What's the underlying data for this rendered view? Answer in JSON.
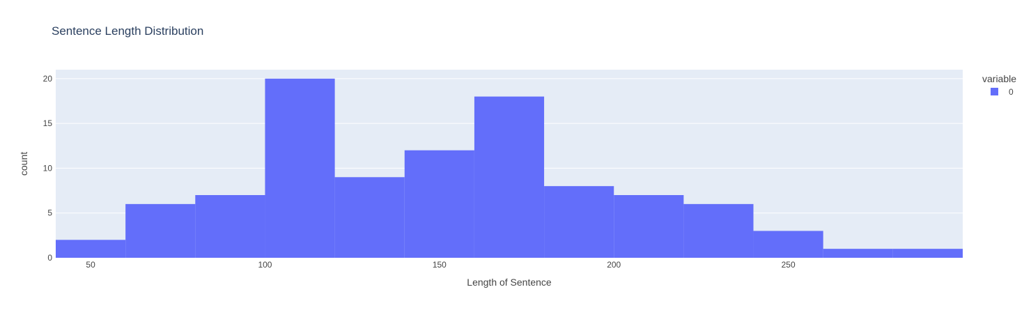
{
  "chart_data": {
    "type": "bar",
    "title": "Sentence Length Distribution",
    "xlabel": "Length of Sentence",
    "ylabel": "count",
    "xlim": [
      40,
      300
    ],
    "ylim": [
      0,
      21
    ],
    "xticks": [
      50,
      100,
      150,
      200,
      250
    ],
    "yticks": [
      0,
      5,
      10,
      15,
      20
    ],
    "grid": true,
    "legend_position": "top-right",
    "legend_title": "variable",
    "series": [
      {
        "name": "0",
        "color": "#636efa",
        "bins": [
          {
            "start": 40,
            "end": 60,
            "count": 2
          },
          {
            "start": 60,
            "end": 80,
            "count": 6
          },
          {
            "start": 80,
            "end": 100,
            "count": 7
          },
          {
            "start": 100,
            "end": 120,
            "count": 20
          },
          {
            "start": 120,
            "end": 140,
            "count": 9
          },
          {
            "start": 140,
            "end": 160,
            "count": 12
          },
          {
            "start": 160,
            "end": 180,
            "count": 18
          },
          {
            "start": 180,
            "end": 200,
            "count": 8
          },
          {
            "start": 200,
            "end": 220,
            "count": 7
          },
          {
            "start": 220,
            "end": 240,
            "count": 6
          },
          {
            "start": 240,
            "end": 260,
            "count": 3
          },
          {
            "start": 260,
            "end": 280,
            "count": 1
          },
          {
            "start": 280,
            "end": 300,
            "count": 1
          }
        ]
      }
    ]
  },
  "colors": {
    "plot_background": "#e5ecf6",
    "grid": "#ffffff",
    "text": "#444444",
    "title_text": "#2a3f5f"
  }
}
